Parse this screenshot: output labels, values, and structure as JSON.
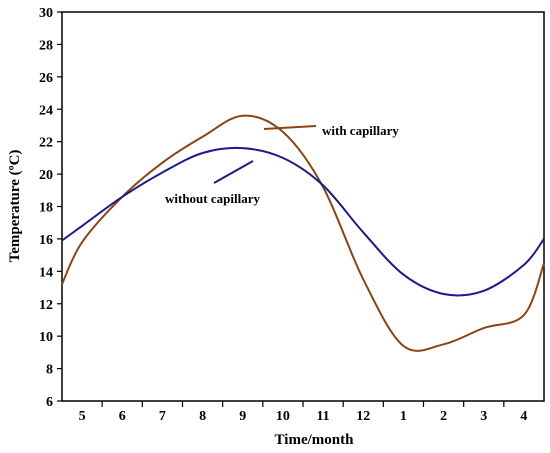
{
  "chart_data": {
    "type": "line",
    "title": "",
    "xlabel": "Time/month",
    "ylabel": "Temperature (ºC)",
    "ylim": [
      6,
      30
    ],
    "y_ticks": [
      6,
      8,
      10,
      12,
      14,
      16,
      18,
      20,
      22,
      24,
      26,
      28,
      30
    ],
    "categories": [
      "5",
      "6",
      "7",
      "8",
      "9",
      "10",
      "11",
      "12",
      "1",
      "2",
      "3",
      "4"
    ],
    "x": [
      4.5,
      5,
      6,
      7,
      8,
      9,
      10,
      11,
      12,
      13,
      14,
      15,
      16,
      16.5
    ],
    "grid": false,
    "series": [
      {
        "name": "with capillary",
        "color": "#8B4513",
        "values": [
          13.2,
          15.8,
          18.6,
          20.7,
          22.3,
          23.6,
          22.6,
          19.2,
          13.5,
          9.4,
          9.5,
          10.5,
          11.3,
          14.5
        ]
      },
      {
        "name": "without capillary",
        "color": "#1a1a8c",
        "values": [
          15.9,
          16.8,
          18.6,
          20.1,
          21.3,
          21.6,
          21.0,
          19.3,
          16.4,
          13.8,
          12.6,
          12.8,
          14.4,
          16.0
        ]
      }
    ],
    "annotations": [
      {
        "text": "with capillary",
        "series": 0
      },
      {
        "text": "without capillary",
        "series": 1
      }
    ]
  }
}
